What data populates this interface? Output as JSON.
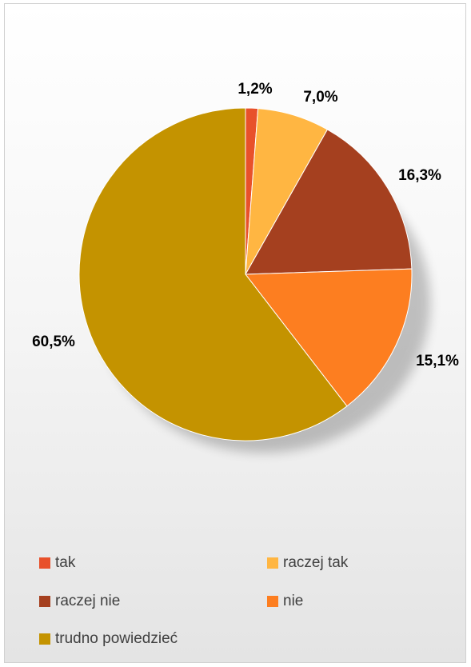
{
  "chart_data": {
    "type": "pie",
    "categories": [
      "tak",
      "raczej tak",
      "raczej nie",
      "nie",
      "trudno powiedzieć"
    ],
    "values": [
      1.2,
      7.0,
      16.3,
      15.1,
      60.5
    ],
    "data_labels": [
      "1,2%",
      "7,0%",
      "16,3%",
      "15,1%",
      "60,5%"
    ],
    "colors": [
      "#e8512b",
      "#ffb642",
      "#a5401f",
      "#fd7e20",
      "#c49300"
    ],
    "legend_position": "bottom",
    "start_angle": "12 o'clock",
    "direction": "clockwise"
  }
}
